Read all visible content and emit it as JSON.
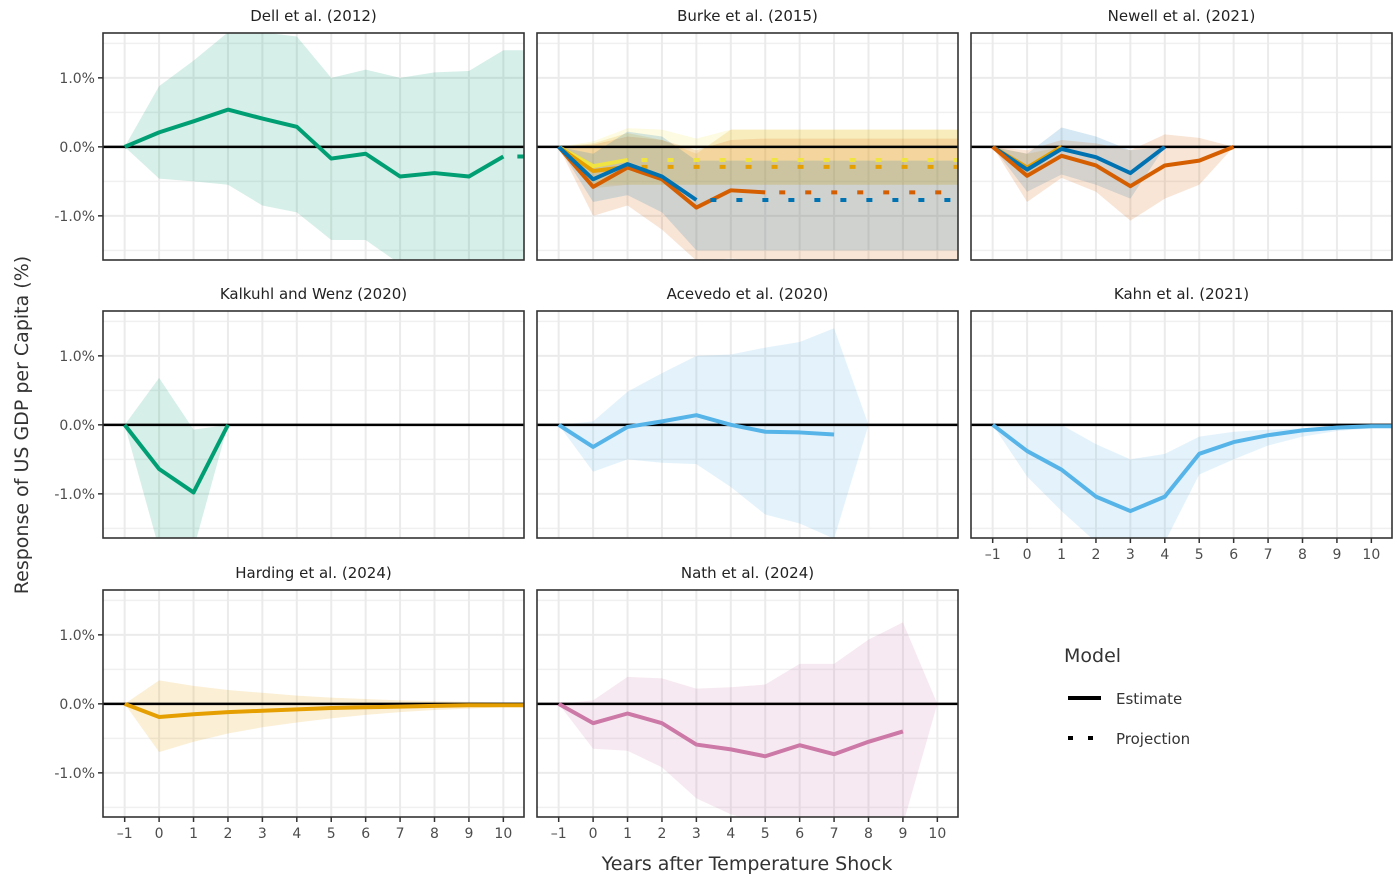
{
  "chart_data": {
    "type": "line",
    "layout": "facet-grid-3x3",
    "xlabel": "Years after Temperature Shock",
    "ylabel": "Response of US GDP per Capita (%)",
    "xlim": [
      -1.63,
      10.6
    ],
    "ylim": [
      -1.64,
      1.65
    ],
    "x_ticks": [
      -1,
      0,
      1,
      2,
      3,
      4,
      5,
      6,
      7,
      8,
      9,
      10
    ],
    "y_ticks": [
      {
        "value": 1.0,
        "label": "1.0%"
      },
      {
        "value": 0.0,
        "label": "0.0%"
      },
      {
        "value": -1.0,
        "label": "-1.0%"
      }
    ],
    "grid": true,
    "zero_line": true,
    "legend": {
      "title": "Model",
      "placement": "right-bottom",
      "entries": [
        {
          "label": "Estimate",
          "style": "solid"
        },
        {
          "label": "Projection",
          "style": "dotted"
        }
      ]
    },
    "colors": {
      "green": "#009E73",
      "yellow": "#F0E442",
      "orange": "#E69F00",
      "vermillion": "#D55E00",
      "blue": "#0072B2",
      "skyblue": "#56B4E9",
      "pink": "#CC79A7"
    },
    "panels": [
      {
        "title": "Dell et al. (2012)",
        "series": [
          {
            "color": "#009E73",
            "x": [
              -1,
              0,
              1,
              2,
              3,
              4,
              5,
              6,
              7,
              8,
              9,
              10
            ],
            "estimate": [
              0,
              0.21,
              0.37,
              0.54,
              0.41,
              0.29,
              -0.17,
              -0.1,
              -0.43,
              -0.38,
              -0.43,
              -0.14
            ],
            "projection_x": [
              10,
              10.6
            ],
            "projection": [
              -0.14,
              -0.14
            ],
            "band_x": [
              -1,
              0,
              1,
              2,
              3,
              4,
              5,
              6,
              7,
              8,
              9,
              10,
              10.6
            ],
            "upper": [
              0,
              0.88,
              1.25,
              1.66,
              1.66,
              1.6,
              1.0,
              1.12,
              1.0,
              1.08,
              1.1,
              1.4,
              1.4
            ],
            "lower": [
              0,
              -0.46,
              -0.5,
              -0.55,
              -0.85,
              -0.95,
              -1.35,
              -1.35,
              -1.7,
              -1.9,
              -2.0,
              -2.1,
              -2.1
            ]
          }
        ]
      },
      {
        "title": "Burke et al. (2015)",
        "series": [
          {
            "color": "#F0E442",
            "x": [
              -1,
              0,
              1
            ],
            "estimate": [
              0,
              -0.28,
              -0.19
            ],
            "projection_x": [
              1,
              10.6
            ],
            "projection": [
              -0.19,
              -0.19
            ],
            "band_x": [
              -1,
              0,
              1,
              2,
              3,
              4,
              10.6
            ],
            "upper": [
              0,
              0.08,
              0.27,
              0.25,
              0.12,
              0.25,
              0.25
            ],
            "lower": [
              0,
              -0.55,
              -0.55,
              -0.55,
              -0.55,
              -0.55,
              -0.55
            ]
          },
          {
            "color": "#E69F00",
            "x": [
              -1,
              0,
              1
            ],
            "estimate": [
              0,
              -0.35,
              -0.29
            ],
            "projection_x": [
              1,
              10.6
            ],
            "projection": [
              -0.29,
              -0.29
            ],
            "band_x": [
              -1,
              0,
              1,
              2,
              3,
              4,
              10.6
            ],
            "upper": [
              0,
              0.05,
              0.2,
              0.1,
              -0.1,
              0.25,
              0.25
            ],
            "lower": [
              0,
              -0.6,
              -0.55,
              -0.55,
              -0.55,
              -0.55,
              -0.55
            ]
          },
          {
            "color": "#D55E00",
            "x": [
              -1,
              0,
              1,
              2,
              3,
              4,
              5
            ],
            "estimate": [
              0,
              -0.58,
              -0.3,
              -0.47,
              -0.88,
              -0.63,
              -0.66
            ],
            "projection_x": [
              5,
              10.6
            ],
            "projection": [
              -0.66,
              -0.66
            ],
            "band_x": [
              -1,
              0,
              1,
              2,
              3,
              4,
              5,
              10.6
            ],
            "upper": [
              0,
              0.03,
              0.15,
              0.1,
              -0.05,
              0.1,
              0.12,
              0.12
            ],
            "lower": [
              0,
              -1.0,
              -0.85,
              -1.2,
              -1.65,
              -1.62,
              -1.65,
              -1.65
            ]
          },
          {
            "color": "#0072B2",
            "x": [
              -1,
              0,
              1,
              2,
              3
            ],
            "estimate": [
              0,
              -0.47,
              -0.25,
              -0.43,
              -0.77
            ],
            "projection_x": [
              3,
              10.6
            ],
            "projection": [
              -0.77,
              -0.77
            ],
            "band_x": [
              -1,
              0,
              1,
              2,
              3,
              10.6
            ],
            "upper": [
              0,
              -0.1,
              0.22,
              0.15,
              -0.2,
              -0.2
            ],
            "lower": [
              0,
              -0.8,
              -0.7,
              -0.95,
              -1.5,
              -1.5
            ]
          }
        ]
      },
      {
        "title": "Newell et al. (2021)",
        "series": [
          {
            "color": "#E69F00",
            "x": [
              -1,
              0,
              1
            ],
            "estimate": [
              0,
              -0.3,
              0
            ],
            "band_x": [
              -1,
              0,
              1
            ],
            "upper": [
              0,
              -0.1,
              0
            ],
            "lower": [
              0,
              -0.45,
              0
            ]
          },
          {
            "color": "#0072B2",
            "x": [
              -1,
              0,
              1,
              2,
              3,
              4
            ],
            "estimate": [
              0,
              -0.33,
              -0.03,
              -0.15,
              -0.38,
              0
            ],
            "band_x": [
              -1,
              0,
              1,
              2,
              3,
              4
            ],
            "upper": [
              0,
              -0.1,
              0.28,
              0.15,
              -0.05,
              0
            ],
            "lower": [
              0,
              -0.65,
              -0.4,
              -0.55,
              -0.75,
              0
            ]
          },
          {
            "color": "#D55E00",
            "x": [
              -1,
              0,
              1,
              2,
              3,
              4,
              5,
              6
            ],
            "estimate": [
              0,
              -0.42,
              -0.13,
              -0.27,
              -0.57,
              -0.27,
              -0.2,
              0
            ],
            "band_x": [
              -1,
              0,
              1,
              2,
              3,
              4,
              5,
              6
            ],
            "upper": [
              0,
              -0.05,
              0.1,
              0.05,
              -0.05,
              0.18,
              0.13,
              0
            ],
            "lower": [
              0,
              -0.8,
              -0.45,
              -0.65,
              -1.07,
              -0.75,
              -0.55,
              0
            ]
          }
        ]
      },
      {
        "title": "Kalkuhl and Wenz (2020)",
        "series": [
          {
            "color": "#009E73",
            "x": [
              -1,
              0,
              1,
              2
            ],
            "estimate": [
              0,
              -0.64,
              -0.98,
              0
            ],
            "band_x": [
              -1,
              0,
              1,
              2
            ],
            "upper": [
              0,
              0.68,
              -0.07,
              0
            ],
            "lower": [
              0,
              -1.8,
              -1.8,
              0
            ]
          }
        ]
      },
      {
        "title": "Acevedo et al. (2020)",
        "series": [
          {
            "color": "#56B4E9",
            "x": [
              -1,
              0,
              1,
              2,
              3,
              4,
              5,
              6,
              7
            ],
            "estimate": [
              0,
              -0.32,
              -0.03,
              0.05,
              0.14,
              0,
              -0.1,
              -0.11,
              -0.14
            ],
            "projection_x": [
              7.6,
              7.8
            ],
            "projection": [
              -0.04,
              -0.06
            ],
            "band_x": [
              -1,
              0,
              1,
              2,
              3,
              4,
              5,
              6,
              7,
              8
            ],
            "upper": [
              0,
              0.05,
              0.48,
              0.75,
              1.0,
              1.02,
              1.12,
              1.2,
              1.4,
              0
            ],
            "lower": [
              0,
              -0.68,
              -0.5,
              -0.55,
              -0.57,
              -0.9,
              -1.3,
              -1.43,
              -1.65,
              0
            ]
          }
        ]
      },
      {
        "title": "Kahn et al. (2021)",
        "series": [
          {
            "color": "#56B4E9",
            "x": [
              -1,
              0,
              1,
              2,
              3,
              4,
              5,
              6,
              7,
              8,
              9,
              10,
              10.6
            ],
            "estimate": [
              0,
              -0.38,
              -0.65,
              -1.04,
              -1.25,
              -1.04,
              -0.42,
              -0.25,
              -0.15,
              -0.08,
              -0.04,
              -0.02,
              -0.02
            ],
            "band_x": [
              -1,
              0,
              1,
              2,
              3,
              4,
              5,
              6,
              7,
              8,
              9,
              10,
              10.6
            ],
            "upper": [
              0,
              0,
              0,
              -0.28,
              -0.5,
              -0.42,
              -0.17,
              -0.1,
              -0.07,
              -0.05,
              -0.03,
              -0.01,
              -0.01
            ],
            "lower": [
              0,
              -0.75,
              -1.25,
              -1.7,
              -2.0,
              -1.7,
              -0.72,
              -0.5,
              -0.3,
              -0.17,
              -0.09,
              -0.05,
              -0.04
            ]
          }
        ]
      },
      {
        "title": "Harding et al. (2024)",
        "series": [
          {
            "color": "#E69F00",
            "x": [
              -1,
              0,
              1,
              2,
              3,
              4,
              5,
              6,
              7,
              8,
              9,
              10,
              10.6
            ],
            "estimate": [
              0,
              -0.19,
              -0.15,
              -0.12,
              -0.1,
              -0.08,
              -0.06,
              -0.05,
              -0.04,
              -0.03,
              -0.02,
              -0.02,
              -0.02
            ],
            "band_x": [
              -1,
              0,
              1,
              2,
              3,
              4,
              5,
              6,
              7,
              8,
              9,
              10,
              10.6
            ],
            "upper": [
              0,
              0.34,
              0.26,
              0.2,
              0.16,
              0.12,
              0.09,
              0.07,
              0.05,
              0.04,
              0.03,
              0.02,
              0.02
            ],
            "lower": [
              0,
              -0.7,
              -0.55,
              -0.43,
              -0.34,
              -0.27,
              -0.21,
              -0.16,
              -0.12,
              -0.09,
              -0.07,
              -0.05,
              -0.05
            ]
          }
        ]
      },
      {
        "title": "Nath et al. (2024)",
        "series": [
          {
            "color": "#CC79A7",
            "x": [
              -1,
              0,
              1,
              2,
              3,
              4,
              5,
              6,
              7,
              8,
              9
            ],
            "estimate": [
              0,
              -0.28,
              -0.14,
              -0.28,
              -0.59,
              -0.66,
              -0.76,
              -0.6,
              -0.73,
              -0.55,
              -0.4
            ],
            "projection_x": [
              9.5,
              9.65
            ],
            "projection": [
              -0.17,
              -0.12
            ],
            "band_x": [
              -1,
              0,
              1,
              2,
              3,
              4,
              5,
              6,
              7,
              8,
              9,
              10
            ],
            "upper": [
              0,
              0.05,
              0.39,
              0.37,
              0.22,
              0.24,
              0.28,
              0.58,
              0.58,
              0.93,
              1.18,
              0
            ],
            "lower": [
              0,
              -0.65,
              -0.68,
              -0.92,
              -1.37,
              -1.6,
              -1.75,
              -1.75,
              -1.75,
              -1.75,
              -1.75,
              0
            ]
          }
        ]
      }
    ]
  }
}
